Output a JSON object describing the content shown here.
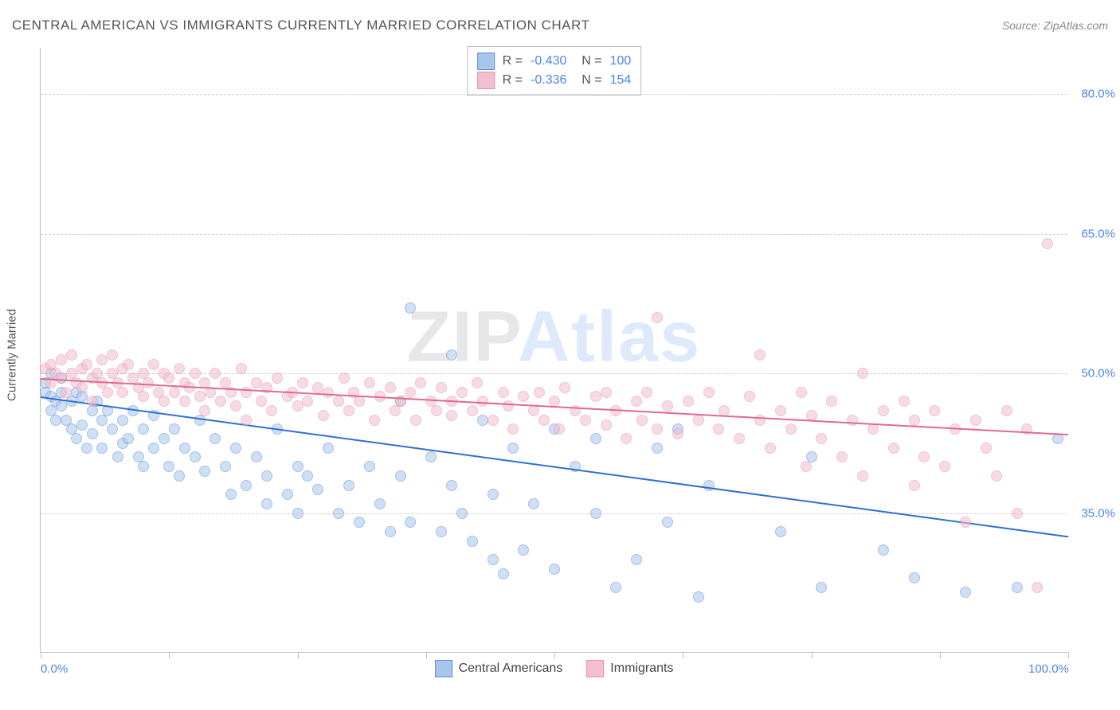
{
  "title": "CENTRAL AMERICAN VS IMMIGRANTS CURRENTLY MARRIED CORRELATION CHART",
  "source_label": "Source: ",
  "source_name": "ZipAtlas.com",
  "yaxis_label": "Currently Married",
  "watermark_a": "ZIP",
  "watermark_b": "Atlas",
  "chart": {
    "type": "scatter",
    "xlim": [
      0,
      100
    ],
    "ylim": [
      20,
      85
    ],
    "xticks": [
      0,
      12.5,
      25,
      37.5,
      50,
      62.5,
      75,
      87.5,
      100
    ],
    "xtick_labels": {
      "0": "0.0%",
      "100": "100.0%"
    },
    "ygrid": [
      35,
      50,
      65,
      80
    ],
    "ytick_labels": {
      "35": "35.0%",
      "50": "50.0%",
      "65": "65.0%",
      "80": "80.0%"
    },
    "background_color": "#ffffff",
    "grid_color": "#cccccc",
    "axis_color": "#bbbbbb",
    "tick_label_color": "#4a86e8",
    "point_radius": 7,
    "point_opacity": 0.55,
    "series": [
      {
        "name": "Central Americans",
        "fill": "#a8c5ec",
        "stroke": "#5b8fd6",
        "trend_color": "#2f6fd0",
        "trend_width": 2,
        "R": "-0.430",
        "N": "100",
        "trend": {
          "x1": 0,
          "y1": 47.5,
          "x2": 100,
          "y2": 32.5
        },
        "points": [
          [
            0.5,
            49
          ],
          [
            0.5,
            48
          ],
          [
            1,
            50
          ],
          [
            1,
            47.5
          ],
          [
            1,
            46
          ],
          [
            1.5,
            47
          ],
          [
            1.5,
            45
          ],
          [
            2,
            48
          ],
          [
            2,
            46.5
          ],
          [
            2,
            49.5
          ],
          [
            2.5,
            45
          ],
          [
            3,
            47
          ],
          [
            3,
            44
          ],
          [
            3.5,
            48
          ],
          [
            3.5,
            43
          ],
          [
            4,
            47.5
          ],
          [
            4,
            44.5
          ],
          [
            4.5,
            42
          ],
          [
            5,
            46
          ],
          [
            5,
            43.5
          ],
          [
            5.5,
            47
          ],
          [
            6,
            45
          ],
          [
            6,
            42
          ],
          [
            6.5,
            46
          ],
          [
            7,
            44
          ],
          [
            7.5,
            41
          ],
          [
            8,
            45
          ],
          [
            8,
            42.5
          ],
          [
            8.5,
            43
          ],
          [
            9,
            46
          ],
          [
            9.5,
            41
          ],
          [
            10,
            44
          ],
          [
            10,
            40
          ],
          [
            11,
            45.5
          ],
          [
            11,
            42
          ],
          [
            12,
            43
          ],
          [
            12.5,
            40
          ],
          [
            13,
            44
          ],
          [
            13.5,
            39
          ],
          [
            14,
            42
          ],
          [
            15,
            41
          ],
          [
            15.5,
            45
          ],
          [
            16,
            39.5
          ],
          [
            17,
            43
          ],
          [
            18,
            40
          ],
          [
            18.5,
            37
          ],
          [
            19,
            42
          ],
          [
            20,
            38
          ],
          [
            21,
            41
          ],
          [
            22,
            39
          ],
          [
            22,
            36
          ],
          [
            23,
            44
          ],
          [
            24,
            37
          ],
          [
            25,
            40
          ],
          [
            25,
            35
          ],
          [
            26,
            39
          ],
          [
            27,
            37.5
          ],
          [
            28,
            42
          ],
          [
            29,
            35
          ],
          [
            30,
            38
          ],
          [
            31,
            34
          ],
          [
            32,
            40
          ],
          [
            33,
            36
          ],
          [
            34,
            33
          ],
          [
            35,
            39
          ],
          [
            35,
            47
          ],
          [
            36,
            34
          ],
          [
            36,
            57
          ],
          [
            38,
            41
          ],
          [
            39,
            33
          ],
          [
            40,
            38
          ],
          [
            40,
            52
          ],
          [
            41,
            35
          ],
          [
            42,
            32
          ],
          [
            43,
            45
          ],
          [
            44,
            30
          ],
          [
            44,
            37
          ],
          [
            45,
            28.5
          ],
          [
            46,
            42
          ],
          [
            47,
            31
          ],
          [
            48,
            36
          ],
          [
            50,
            29
          ],
          [
            50,
            44
          ],
          [
            52,
            40
          ],
          [
            54,
            43
          ],
          [
            54,
            35
          ],
          [
            56,
            27
          ],
          [
            58,
            30
          ],
          [
            60,
            42
          ],
          [
            61,
            34
          ],
          [
            62,
            44
          ],
          [
            64,
            26
          ],
          [
            65,
            38
          ],
          [
            72,
            33
          ],
          [
            75,
            41
          ],
          [
            76,
            27
          ],
          [
            82,
            31
          ],
          [
            85,
            28
          ],
          [
            90,
            26.5
          ],
          [
            95,
            27
          ],
          [
            99,
            43
          ]
        ]
      },
      {
        "name": "Immigrants",
        "fill": "#f2bfcf",
        "stroke": "#e590ae",
        "trend_color": "#e06a91",
        "trend_width": 2,
        "R": "-0.336",
        "N": "154",
        "trend": {
          "x1": 0,
          "y1": 49.5,
          "x2": 100,
          "y2": 43.5
        },
        "points": [
          [
            0.5,
            50.5
          ],
          [
            1,
            49
          ],
          [
            1,
            51
          ],
          [
            1.5,
            50
          ],
          [
            2,
            49.5
          ],
          [
            2,
            51.5
          ],
          [
            2.5,
            48
          ],
          [
            3,
            50
          ],
          [
            3,
            52
          ],
          [
            3.5,
            49
          ],
          [
            4,
            50.5
          ],
          [
            4,
            48.5
          ],
          [
            4.5,
            51
          ],
          [
            5,
            49.5
          ],
          [
            5,
            47
          ],
          [
            5.5,
            50
          ],
          [
            6,
            49
          ],
          [
            6,
            51.5
          ],
          [
            6.5,
            48
          ],
          [
            7,
            50
          ],
          [
            7,
            52
          ],
          [
            7.5,
            49
          ],
          [
            8,
            50.5
          ],
          [
            8,
            48
          ],
          [
            8.5,
            51
          ],
          [
            9,
            49.5
          ],
          [
            9.5,
            48.5
          ],
          [
            10,
            50
          ],
          [
            10,
            47.5
          ],
          [
            10.5,
            49
          ],
          [
            11,
            51
          ],
          [
            11.5,
            48
          ],
          [
            12,
            50
          ],
          [
            12,
            47
          ],
          [
            12.5,
            49.5
          ],
          [
            13,
            48
          ],
          [
            13.5,
            50.5
          ],
          [
            14,
            49
          ],
          [
            14,
            47
          ],
          [
            14.5,
            48.5
          ],
          [
            15,
            50
          ],
          [
            15.5,
            47.5
          ],
          [
            16,
            49
          ],
          [
            16,
            46
          ],
          [
            16.5,
            48
          ],
          [
            17,
            50
          ],
          [
            17.5,
            47
          ],
          [
            18,
            49
          ],
          [
            18.5,
            48
          ],
          [
            19,
            46.5
          ],
          [
            19.5,
            50.5
          ],
          [
            20,
            48
          ],
          [
            20,
            45
          ],
          [
            21,
            49
          ],
          [
            21.5,
            47
          ],
          [
            22,
            48.5
          ],
          [
            22.5,
            46
          ],
          [
            23,
            49.5
          ],
          [
            24,
            47.5
          ],
          [
            24.5,
            48
          ],
          [
            25,
            46.5
          ],
          [
            25.5,
            49
          ],
          [
            26,
            47
          ],
          [
            27,
            48.5
          ],
          [
            27.5,
            45.5
          ],
          [
            28,
            48
          ],
          [
            29,
            47
          ],
          [
            29.5,
            49.5
          ],
          [
            30,
            46
          ],
          [
            30.5,
            48
          ],
          [
            31,
            47
          ],
          [
            32,
            49
          ],
          [
            32.5,
            45
          ],
          [
            33,
            47.5
          ],
          [
            34,
            48.5
          ],
          [
            34.5,
            46
          ],
          [
            35,
            47
          ],
          [
            36,
            48
          ],
          [
            36.5,
            45
          ],
          [
            37,
            49
          ],
          [
            38,
            47
          ],
          [
            38.5,
            46
          ],
          [
            39,
            48.5
          ],
          [
            40,
            47
          ],
          [
            40,
            45.5
          ],
          [
            41,
            48
          ],
          [
            42,
            46
          ],
          [
            42.5,
            49
          ],
          [
            43,
            47
          ],
          [
            44,
            45
          ],
          [
            45,
            48
          ],
          [
            45.5,
            46.5
          ],
          [
            46,
            44
          ],
          [
            47,
            47.5
          ],
          [
            48,
            46
          ],
          [
            48.5,
            48
          ],
          [
            49,
            45
          ],
          [
            50,
            47
          ],
          [
            50.5,
            44
          ],
          [
            51,
            48.5
          ],
          [
            52,
            46
          ],
          [
            53,
            45
          ],
          [
            54,
            47.5
          ],
          [
            55,
            44.5
          ],
          [
            55,
            48
          ],
          [
            56,
            46
          ],
          [
            57,
            43
          ],
          [
            58,
            47
          ],
          [
            58.5,
            45
          ],
          [
            59,
            48
          ],
          [
            60,
            44
          ],
          [
            60,
            56
          ],
          [
            61,
            46.5
          ],
          [
            62,
            43.5
          ],
          [
            63,
            47
          ],
          [
            64,
            45
          ],
          [
            65,
            48
          ],
          [
            66,
            44
          ],
          [
            66.5,
            46
          ],
          [
            68,
            43
          ],
          [
            69,
            47.5
          ],
          [
            70,
            45
          ],
          [
            70,
            52
          ],
          [
            71,
            42
          ],
          [
            72,
            46
          ],
          [
            73,
            44
          ],
          [
            74,
            48
          ],
          [
            74.5,
            40
          ],
          [
            75,
            45.5
          ],
          [
            76,
            43
          ],
          [
            77,
            47
          ],
          [
            78,
            41
          ],
          [
            79,
            45
          ],
          [
            80,
            50
          ],
          [
            80,
            39
          ],
          [
            81,
            44
          ],
          [
            82,
            46
          ],
          [
            83,
            42
          ],
          [
            84,
            47
          ],
          [
            85,
            38
          ],
          [
            85,
            45
          ],
          [
            86,
            41
          ],
          [
            87,
            46
          ],
          [
            88,
            40
          ],
          [
            89,
            44
          ],
          [
            90,
            34
          ],
          [
            91,
            45
          ],
          [
            92,
            42
          ],
          [
            93,
            39
          ],
          [
            94,
            46
          ],
          [
            95,
            35
          ],
          [
            96,
            44
          ],
          [
            97,
            27
          ],
          [
            98,
            64
          ]
        ]
      }
    ]
  },
  "legend_bottom": [
    {
      "label": "Central Americans",
      "fill": "#a8c5ec",
      "stroke": "#5b8fd6"
    },
    {
      "label": "Immigrants",
      "fill": "#f2bfcf",
      "stroke": "#e590ae"
    }
  ]
}
